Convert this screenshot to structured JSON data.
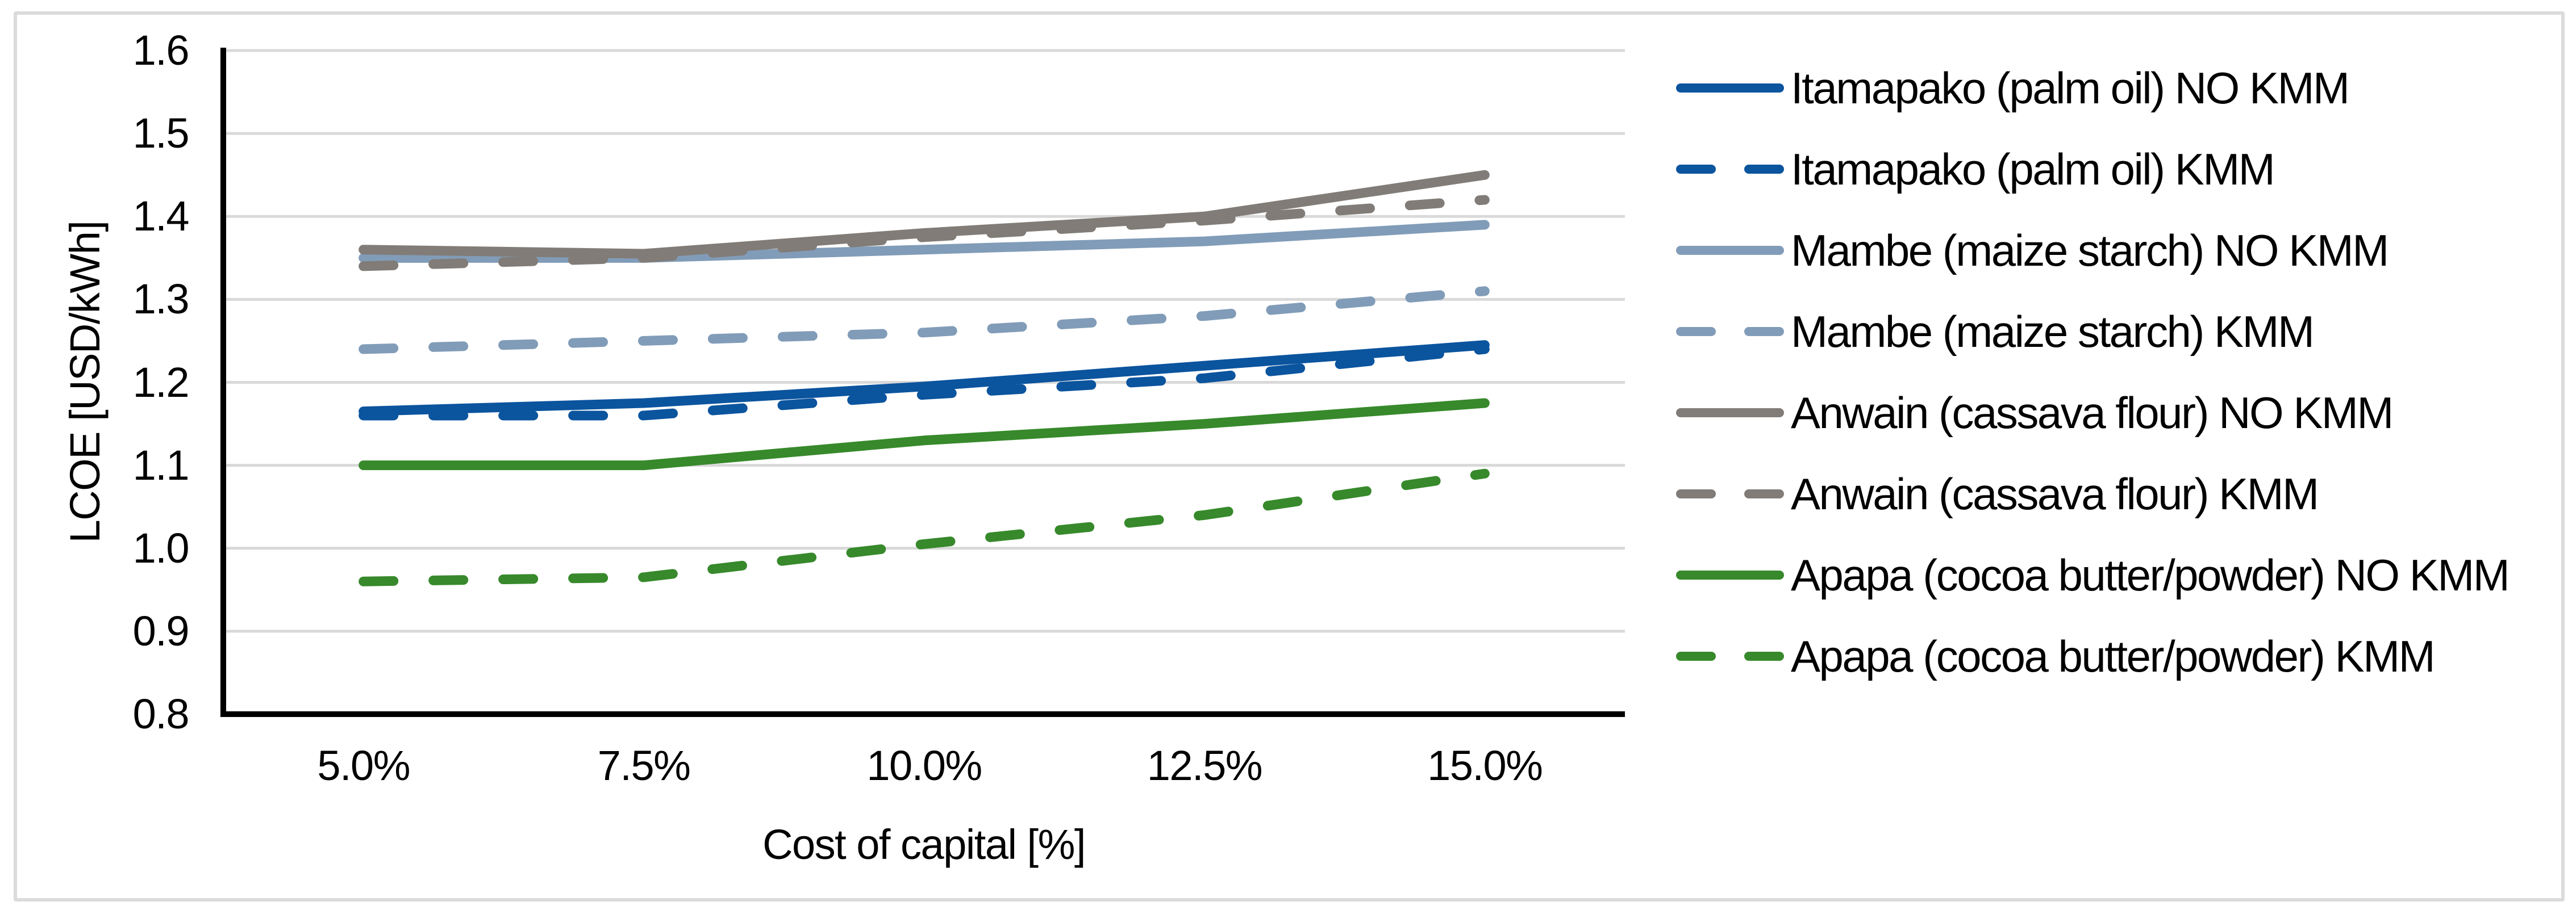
{
  "window": {
    "background": "#ffffff",
    "frame_color": "#dbdbdb"
  },
  "chart_data": {
    "type": "line",
    "title": "",
    "xlabel": "Cost of capital [%]",
    "ylabel": "LCOE [USD/kWh]",
    "x_tick_labels": [
      "5.0%",
      "7.5%",
      "10.0%",
      "12.5%",
      "15.0%"
    ],
    "x_values_percent": [
      5.0,
      7.5,
      10.0,
      12.5,
      15.0
    ],
    "y_tick_labels": [
      "1.6",
      "1.5",
      "1.4",
      "1.3",
      "1.2",
      "1.1",
      "1.0",
      "0.9",
      "0.8"
    ],
    "ylim": [
      0.8,
      1.6
    ],
    "y_tick_step": 0.1,
    "grid": "horizontal",
    "gridline_color": "#d9d9d9",
    "axis_color": "#000000",
    "legend_position": "right",
    "series": [
      {
        "name": "Itamapako (palm oil) NO KMM",
        "color": "#0b549e",
        "style": "solid",
        "values": [
          1.165,
          1.175,
          1.195,
          1.22,
          1.245
        ]
      },
      {
        "name": "Itamapako (palm oil) KMM",
        "color": "#0b549e",
        "style": "dashed",
        "values": [
          1.16,
          1.16,
          1.185,
          1.205,
          1.24
        ]
      },
      {
        "name": "Mambe (maize starch) NO KMM",
        "color": "#819cb8",
        "style": "solid",
        "values": [
          1.35,
          1.35,
          1.36,
          1.37,
          1.39
        ]
      },
      {
        "name": "Mambe (maize starch) KMM",
        "color": "#819cb8",
        "style": "dashed",
        "values": [
          1.24,
          1.25,
          1.26,
          1.28,
          1.31
        ]
      },
      {
        "name": "Anwain (cassava flour) NO KMM",
        "color": "#817c77",
        "style": "solid",
        "values": [
          1.36,
          1.355,
          1.38,
          1.4,
          1.45
        ]
      },
      {
        "name": "Anwain (cassava flour) KMM",
        "color": "#817c77",
        "style": "dashed",
        "values": [
          1.34,
          1.35,
          1.375,
          1.395,
          1.42
        ]
      },
      {
        "name": "Apapa (cocoa butter/powder) NO KMM",
        "color": "#37892b",
        "style": "solid",
        "values": [
          1.1,
          1.1,
          1.13,
          1.15,
          1.175
        ]
      },
      {
        "name": "Apapa (cocoa butter/powder) KMM",
        "color": "#37892b",
        "style": "dashed",
        "values": [
          0.96,
          0.965,
          1.005,
          1.04,
          1.09
        ]
      }
    ]
  }
}
